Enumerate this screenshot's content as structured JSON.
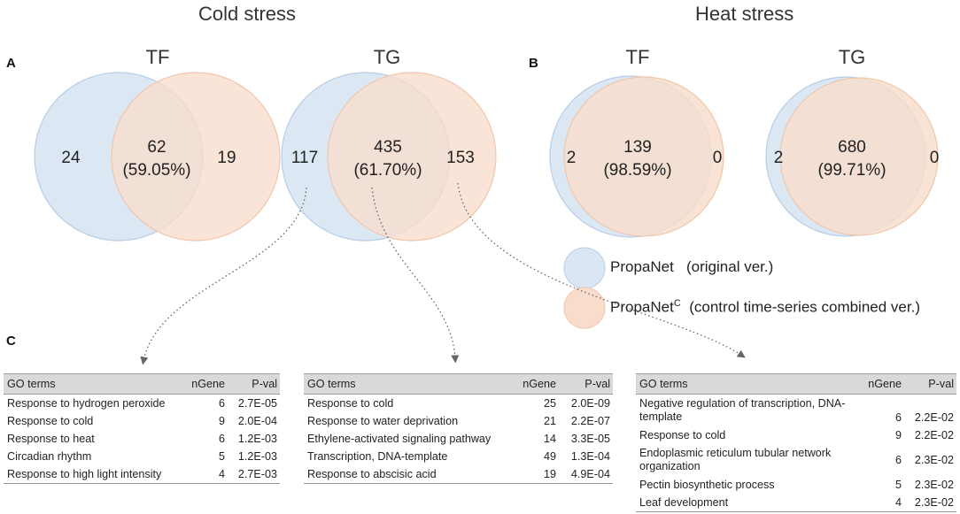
{
  "headings": {
    "cold": "Cold stress",
    "heat": "Heat stress",
    "panel_a": "A",
    "panel_b": "B",
    "panel_c": "C"
  },
  "venns": [
    {
      "title": "TF",
      "left_only": "24",
      "overlap": "62",
      "overlap_pct": "(59.05%)",
      "right_only": "19"
    },
    {
      "title": "TG",
      "left_only": "117",
      "overlap": "435",
      "overlap_pct": "(61.70%)",
      "right_only": "153"
    },
    {
      "title": "TF",
      "left_only": "2",
      "overlap": "139",
      "overlap_pct": "(98.59%)",
      "right_only": "0"
    },
    {
      "title": "TG",
      "left_only": "2",
      "overlap": "680",
      "overlap_pct": "(99.71%)",
      "right_only": "0"
    }
  ],
  "legend": {
    "original_name": "PropaNet",
    "original_desc": "(original ver.)",
    "combined_name": "PropaNet",
    "combined_sup": "C",
    "combined_desc": "(control time-series combined ver.)"
  },
  "colors": {
    "blue_fill": "#dae6f3",
    "blue_stroke": "#b8cde6",
    "orange_fill": "#f8ddcc",
    "orange_stroke": "#f1c6aa",
    "overlap_fill": "#dcccc6",
    "header_bg": "#d9d9d9"
  },
  "tables": [
    {
      "headers": {
        "term": "GO terms",
        "ngene": "nGene",
        "pval": "P-val"
      },
      "rows": [
        {
          "term": "Response to hydrogen peroxide",
          "ngene": "6",
          "pval": "2.7E-05"
        },
        {
          "term": "Response to cold",
          "ngene": "9",
          "pval": "2.0E-04"
        },
        {
          "term": "Response to heat",
          "ngene": "6",
          "pval": "1.2E-03"
        },
        {
          "term": "Circadian rhythm",
          "ngene": "5",
          "pval": "1.2E-03"
        },
        {
          "term": "Response to high light intensity",
          "ngene": "4",
          "pval": "2.7E-03"
        }
      ]
    },
    {
      "headers": {
        "term": "GO terms",
        "ngene": "nGene",
        "pval": "P-val"
      },
      "rows": [
        {
          "term": "Response to cold",
          "ngene": "25",
          "pval": "2.0E-09"
        },
        {
          "term": "Response to water deprivation",
          "ngene": "21",
          "pval": "2.2E-07"
        },
        {
          "term": "Ethylene-activated signaling pathway",
          "ngene": "14",
          "pval": "3.3E-05"
        },
        {
          "term": "Transcription, DNA-template",
          "ngene": "49",
          "pval": "1.3E-04"
        },
        {
          "term": "Response to abscisic acid",
          "ngene": "19",
          "pval": "4.9E-04"
        }
      ]
    },
    {
      "headers": {
        "term": "GO terms",
        "ngene": "nGene",
        "pval": "P-val"
      },
      "rows": [
        {
          "term": "Negative regulation of transcription, DNA-template",
          "ngene": "6",
          "pval": "2.2E-02"
        },
        {
          "term": "Response to cold",
          "ngene": "9",
          "pval": "2.2E-02"
        },
        {
          "term": "Endoplasmic reticulum tubular network organization",
          "ngene": "6",
          "pval": "2.3E-02"
        },
        {
          "term": "Pectin biosynthetic process",
          "ngene": "5",
          "pval": "2.3E-02"
        },
        {
          "term": "Leaf development",
          "ngene": "4",
          "pval": "2.3E-02"
        }
      ]
    }
  ]
}
